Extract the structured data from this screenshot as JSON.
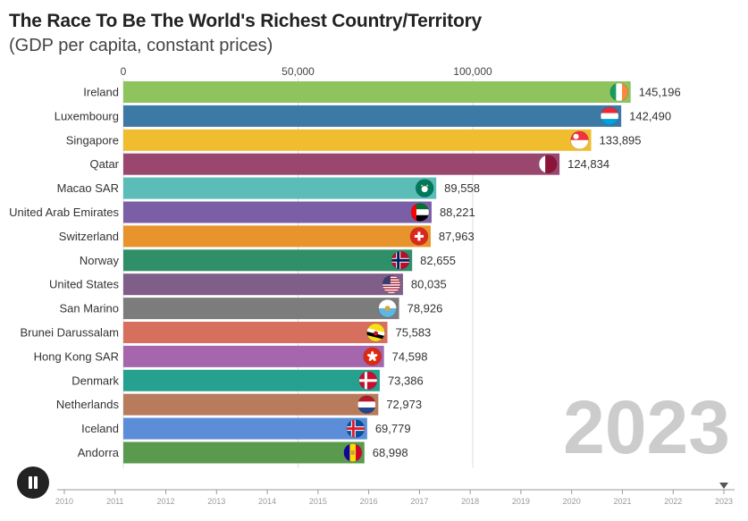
{
  "header": {
    "title": "The Race To Be The World's Richest Country/Territory",
    "subtitle": "(GDP per capita, constant prices)"
  },
  "controls": {
    "play_pause_icon": "pause-icon"
  },
  "chart_data": {
    "type": "bar",
    "orientation": "horizontal",
    "current_year_label": "2023",
    "x_axis": {
      "ticks": [
        0,
        50000,
        100000
      ],
      "tick_labels": [
        "0",
        "50,000",
        "100,000"
      ],
      "position": "top",
      "grid": true
    },
    "categories": [
      "Ireland",
      "Luxembourg",
      "Singapore",
      "Qatar",
      "Macao SAR",
      "United Arab Emirates",
      "Switzerland",
      "Norway",
      "United States",
      "San Marino",
      "Brunei Darussalam",
      "Hong Kong SAR",
      "Denmark",
      "Netherlands",
      "Iceland",
      "Andorra"
    ],
    "values": [
      145196,
      142490,
      133895,
      124834,
      89558,
      88221,
      87963,
      82655,
      80035,
      78926,
      75583,
      74598,
      73386,
      72973,
      69779,
      68998
    ],
    "value_labels": [
      "145,196",
      "142,490",
      "133,895",
      "124,834",
      "89,558",
      "88,221",
      "87,963",
      "82,655",
      "80,035",
      "78,926",
      "75,583",
      "74,598",
      "73,386",
      "72,973",
      "69,779",
      "68,998"
    ],
    "colors": [
      "#8ec35d",
      "#3c79a5",
      "#f0bd2e",
      "#9a476f",
      "#5bbcb8",
      "#7b5fa6",
      "#e8942d",
      "#2f9068",
      "#7f5f8a",
      "#7c7c7c",
      "#d66f5d",
      "#a666ae",
      "#26a190",
      "#b87c5c",
      "#5b8dd8",
      "#5a9a4f"
    ],
    "flag_icons": [
      "ireland-flag-icon",
      "luxembourg-flag-icon",
      "singapore-flag-icon",
      "qatar-flag-icon",
      "macao-flag-icon",
      "uae-flag-icon",
      "switzerland-flag-icon",
      "norway-flag-icon",
      "united-states-flag-icon",
      "san-marino-flag-icon",
      "brunei-flag-icon",
      "hong-kong-flag-icon",
      "denmark-flag-icon",
      "netherlands-flag-icon",
      "iceland-flag-icon",
      "andorra-flag-icon"
    ],
    "timeline": {
      "years": [
        "2010",
        "2011",
        "2012",
        "2013",
        "2014",
        "2015",
        "2016",
        "2017",
        "2018",
        "2019",
        "2020",
        "2021",
        "2022",
        "2023"
      ],
      "current": "2023"
    }
  }
}
